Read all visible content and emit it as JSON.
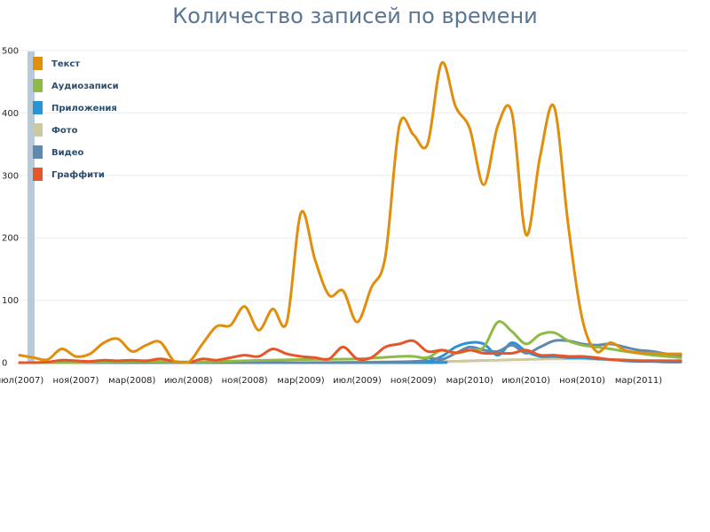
{
  "chart_data": {
    "type": "line",
    "title": "Количество записей по времени",
    "xlabel": "",
    "ylabel": "",
    "ylim": [
      0,
      500
    ],
    "yticks": [
      0,
      100,
      200,
      300,
      400,
      500
    ],
    "grid": true,
    "legend_position": "top-left",
    "xtick_labels": [
      "июл(2007)",
      "ноя(2007)",
      "мар(2008)",
      "июл(2008)",
      "ноя(2008)",
      "мар(2009)",
      "июл(2009)",
      "ноя(2009)",
      "мар(2010)",
      "июл(2010)",
      "ноя(2010)",
      "мар(2011)"
    ],
    "series": [
      {
        "name": "Текст",
        "color": "#e08e0b",
        "x": [
          0,
          1,
          2,
          3,
          4,
          5,
          6,
          7,
          8,
          9,
          10,
          11,
          12,
          13,
          14,
          15,
          16,
          17,
          18,
          19,
          20,
          21,
          22,
          23,
          24,
          25,
          26,
          27,
          28,
          29,
          30,
          31,
          32,
          33,
          34,
          35,
          36,
          37,
          38,
          39,
          40,
          41,
          42,
          43,
          44,
          45,
          46,
          47
        ],
        "y": [
          12,
          8,
          5,
          22,
          10,
          14,
          32,
          38,
          18,
          28,
          33,
          2,
          0,
          30,
          58,
          60,
          90,
          52,
          86,
          65,
          240,
          165,
          108,
          115,
          65,
          120,
          170,
          380,
          365,
          350,
          480,
          410,
          375,
          285,
          380,
          400,
          205,
          330,
          410,
          220,
          70,
          18,
          32,
          20,
          16,
          15,
          14,
          14
        ]
      },
      {
        "name": "Аудиозаписи",
        "color": "#8fba45",
        "x": [
          0,
          4,
          8,
          12,
          16,
          20,
          24,
          27,
          28,
          29,
          30,
          31,
          32,
          33,
          34,
          35,
          36,
          37,
          38,
          39,
          40,
          41,
          42,
          43,
          44,
          45,
          46,
          47
        ],
        "y": [
          0,
          0,
          2,
          1,
          3,
          5,
          6,
          10,
          10,
          8,
          20,
          15,
          20,
          25,
          65,
          50,
          30,
          45,
          48,
          35,
          28,
          25,
          22,
          18,
          15,
          12,
          10,
          8
        ]
      },
      {
        "name": "Приложения",
        "color": "#2a93d5",
        "x": [
          0,
          28,
          29,
          30,
          31,
          32,
          33,
          34,
          35,
          36,
          37,
          38,
          39,
          40,
          41,
          42,
          43,
          44,
          45,
          46,
          47
        ],
        "y": [
          0,
          0,
          2,
          10,
          25,
          32,
          30,
          12,
          32,
          18,
          10,
          10,
          8,
          8,
          6,
          5,
          3,
          2,
          2,
          1,
          1
        ]
      },
      {
        "name": "Фото",
        "color": "#ccc9a0",
        "x": [
          0,
          20,
          30,
          32,
          34,
          36,
          38,
          40,
          42,
          44,
          46,
          47
        ],
        "y": [
          0,
          0,
          2,
          3,
          4,
          5,
          6,
          6,
          5,
          4,
          3,
          3
        ]
      },
      {
        "name": "Видео",
        "color": "#5f8aad",
        "x": [
          0,
          20,
          28,
          29,
          30,
          31,
          32,
          33,
          34,
          35,
          36,
          37,
          38,
          39,
          40,
          41,
          42,
          43,
          44,
          45,
          46,
          47
        ],
        "y": [
          0,
          0,
          2,
          8,
          5,
          15,
          25,
          20,
          18,
          28,
          15,
          25,
          35,
          35,
          30,
          28,
          30,
          25,
          20,
          18,
          14,
          12
        ]
      },
      {
        "name": "Граффити",
        "color": "#e5572a",
        "x": [
          0,
          1,
          2,
          3,
          4,
          5,
          6,
          7,
          8,
          9,
          10,
          11,
          12,
          13,
          14,
          15,
          16,
          17,
          18,
          19,
          20,
          21,
          22,
          23,
          24,
          25,
          26,
          27,
          28,
          29,
          30,
          31,
          32,
          33,
          34,
          35,
          36,
          37,
          38,
          39,
          40,
          41,
          42,
          43,
          44,
          45,
          46,
          47
        ],
        "y": [
          0,
          0,
          1,
          4,
          3,
          2,
          4,
          3,
          4,
          3,
          6,
          2,
          0,
          6,
          4,
          8,
          12,
          10,
          22,
          14,
          10,
          8,
          6,
          25,
          6,
          8,
          25,
          30,
          35,
          18,
          20,
          16,
          20,
          15,
          15,
          15,
          20,
          12,
          12,
          10,
          10,
          8,
          5,
          4,
          3,
          3,
          3,
          3
        ]
      }
    ]
  }
}
